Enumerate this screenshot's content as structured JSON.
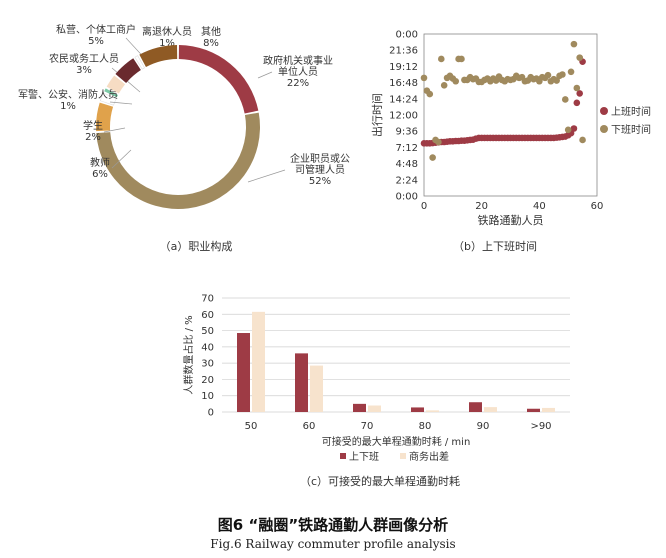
{
  "figure": {
    "title": "图6 “融圈”铁路通勤人群画像分析",
    "subtitle": "Fig.6  Railway commuter profile analysis"
  },
  "colors": {
    "red": "#9e3b45",
    "olive": "#a08a5e",
    "beige": "#f7e3cd",
    "axis": "#666666"
  },
  "chart_data": [
    {
      "type": "pie",
      "caption": "（a）职业构成",
      "slices": [
        {
          "label": "政府机关或事业\n单位人员",
          "pct": "22%",
          "value": 22,
          "color": "#9e3b45"
        },
        {
          "label": "企业职员或公\n司管理人员",
          "pct": "52%",
          "value": 52,
          "color": "#a08a5e"
        },
        {
          "label": "教师",
          "pct": "6%",
          "value": 6,
          "color": "#e0a24b"
        },
        {
          "label": "学生",
          "pct": "2%",
          "value": 2,
          "color": "#ffffff"
        },
        {
          "label": "军警、公安、消防人员",
          "pct": "1%",
          "value": 1,
          "color": "#7ccaa6"
        },
        {
          "label": "农民或务工人员",
          "pct": "3%",
          "value": 3,
          "color": "#f6dcc3"
        },
        {
          "label": "私营、个体工商户",
          "pct": "5%",
          "value": 5,
          "color": "#6a2a2e"
        },
        {
          "label": "离退休人员",
          "pct": "1%",
          "value": 1,
          "color": "#ffffff"
        },
        {
          "label": "其他",
          "pct": "8%",
          "value": 8,
          "color": "#8f5a24"
        }
      ]
    },
    {
      "type": "scatter",
      "caption": "（b）上下班时间",
      "xlabel": "铁路通勤人员",
      "ylabel": "出行时间",
      "xlim": [
        0,
        60
      ],
      "xticks": [
        0,
        20,
        40,
        60
      ],
      "ylim": [
        0,
        24
      ],
      "yticks": [
        "0:00",
        "2:24",
        "4:48",
        "7:12",
        "9:36",
        "12:00",
        "14:24",
        "16:48",
        "19:12",
        "21:36",
        "0:00"
      ],
      "series": [
        {
          "name": "上班时间",
          "color": "#9e3b45",
          "x": [
            0,
            1,
            2,
            3,
            4,
            5,
            6,
            7,
            8,
            9,
            10,
            11,
            12,
            13,
            14,
            15,
            16,
            17,
            18,
            19,
            20,
            21,
            22,
            23,
            24,
            25,
            26,
            27,
            28,
            29,
            30,
            31,
            32,
            33,
            34,
            35,
            36,
            37,
            38,
            39,
            40,
            41,
            42,
            43,
            44,
            45,
            46,
            47,
            48,
            49,
            50,
            51,
            52,
            53,
            54,
            55
          ],
          "y": [
            7.8,
            7.8,
            7.8,
            7.85,
            7.9,
            7.95,
            8.0,
            8.0,
            8.05,
            8.1,
            8.1,
            8.15,
            8.15,
            8.2,
            8.2,
            8.25,
            8.3,
            8.35,
            8.5,
            8.6,
            8.6,
            8.6,
            8.6,
            8.6,
            8.6,
            8.6,
            8.6,
            8.6,
            8.6,
            8.6,
            8.6,
            8.6,
            8.6,
            8.6,
            8.6,
            8.6,
            8.6,
            8.6,
            8.6,
            8.6,
            8.6,
            8.6,
            8.6,
            8.6,
            8.6,
            8.6,
            8.65,
            8.7,
            8.75,
            8.8,
            9.0,
            9.3,
            10.0,
            13.8,
            15.2,
            19.9
          ]
        },
        {
          "name": "下班时间",
          "color": "#a08a5e",
          "x": [
            0,
            1,
            2,
            3,
            4,
            5,
            6,
            7,
            8,
            9,
            10,
            11,
            12,
            13,
            14,
            15,
            16,
            17,
            18,
            19,
            20,
            21,
            22,
            23,
            24,
            25,
            26,
            27,
            28,
            29,
            30,
            31,
            32,
            33,
            34,
            35,
            36,
            37,
            38,
            39,
            40,
            41,
            42,
            43,
            44,
            45,
            46,
            47,
            48,
            49,
            50,
            51,
            52,
            53,
            54,
            55
          ],
          "y": [
            17.5,
            15.6,
            15.1,
            5.7,
            8.3,
            8.0,
            20.3,
            16.4,
            17.5,
            17.8,
            17.4,
            17.0,
            20.3,
            20.3,
            17.2,
            17.2,
            17.6,
            17.3,
            17.4,
            16.9,
            16.9,
            17.2,
            17.4,
            17.0,
            17.4,
            17.1,
            17.7,
            17.2,
            17.0,
            17.3,
            17.2,
            17.3,
            17.8,
            17.5,
            17.6,
            17.0,
            17.1,
            17.6,
            17.3,
            17.4,
            17.0,
            17.6,
            17.5,
            17.9,
            17.0,
            17.3,
            17.1,
            17.8,
            18.0,
            14.3,
            9.8,
            18.4,
            22.5,
            16.0,
            20.5,
            8.3
          ]
        }
      ]
    },
    {
      "type": "bar",
      "caption": "（c）可接受的最大单程通勤时耗",
      "xlabel": "可接受的最大单程通勤时耗 / min",
      "ylabel": "人群数量占比 / %",
      "categories": [
        "50",
        "60",
        "70",
        "80",
        "90",
        ">90"
      ],
      "ylim": [
        0,
        70
      ],
      "yticks": [
        0,
        10,
        20,
        30,
        40,
        50,
        60,
        70
      ],
      "series": [
        {
          "name": "上下班",
          "color": "#9e3b45",
          "values": [
            48.5,
            36,
            5,
            2.8,
            6,
            2
          ]
        },
        {
          "name": "商务出差",
          "color": "#f7e3cd",
          "values": [
            61.5,
            28.5,
            4,
            1,
            3,
            2.5
          ]
        }
      ]
    }
  ]
}
